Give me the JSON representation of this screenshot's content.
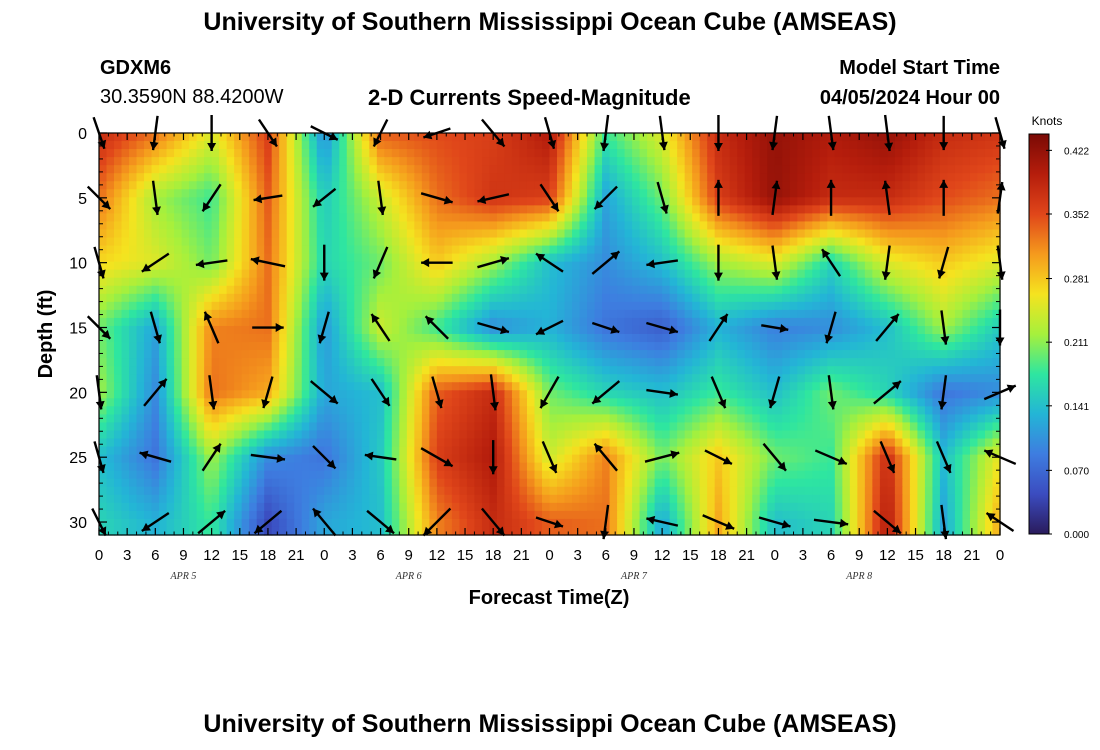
{
  "header": {
    "title": "University of Southern Mississippi Ocean Cube (AMSEAS)",
    "station_id": "GDXM6",
    "coordinates": "30.3590N  88.4200W",
    "plot_title": "2-D Currents Speed-Magnitude",
    "model_start_label": "Model Start Time",
    "model_start_value": "04/05/2024 Hour 00"
  },
  "footer": {
    "title": "University of Southern Mississippi Ocean Cube (AMSEAS)"
  },
  "chart_data": {
    "type": "heatmap",
    "title": "2-D Currents Speed-Magnitude",
    "xlabel": "Forecast Time(Z)",
    "ylabel": "Depth (ft)",
    "x_tick_labels": [
      "0",
      "3",
      "6",
      "9",
      "12",
      "15",
      "18",
      "21",
      "0",
      "3",
      "6",
      "9",
      "12",
      "15",
      "18",
      "21",
      "0",
      "3",
      "6",
      "9",
      "12",
      "15",
      "18",
      "21",
      "0",
      "3",
      "6",
      "9",
      "12",
      "15",
      "18",
      "21",
      "0"
    ],
    "x_hours": [
      0,
      3,
      6,
      9,
      12,
      15,
      18,
      21,
      24,
      27,
      30,
      33,
      36,
      39,
      42,
      45,
      48,
      51,
      54,
      57,
      60,
      63,
      66,
      69,
      72,
      75,
      78,
      81,
      84,
      87,
      90,
      93,
      96
    ],
    "day_labels": [
      {
        "text": "APR 5",
        "hour": 9
      },
      {
        "text": "APR 6",
        "hour": 33
      },
      {
        "text": "APR 7",
        "hour": 57
      },
      {
        "text": "APR 8",
        "hour": 81
      }
    ],
    "xlim": [
      0,
      96
    ],
    "y_ticks": [
      0,
      5,
      10,
      15,
      20,
      25,
      30
    ],
    "ylim": [
      0,
      31
    ],
    "y_inverted": true,
    "colorbar": {
      "label": "Knots",
      "ticks": [
        "0.422",
        "0.352",
        "0.281",
        "0.211",
        "0.141",
        "0.070",
        "0.000"
      ],
      "range": [
        0,
        0.44
      ],
      "colors": [
        "#2a1b5c",
        "#3b4cc0",
        "#3e7de0",
        "#23b5d6",
        "#2ee6a0",
        "#a6f03c",
        "#f5e31f",
        "#f59a1d",
        "#e0461a",
        "#b51d0c",
        "#7a0a05"
      ]
    },
    "depths": [
      0,
      5,
      10,
      15,
      20,
      25,
      30
    ],
    "times": [
      0,
      6,
      12,
      18,
      24,
      30,
      36,
      42,
      48,
      54,
      60,
      66,
      72,
      78,
      84,
      90,
      96
    ],
    "speed": [
      [
        0.38,
        0.33,
        0.25,
        0.36,
        0.1,
        0.34,
        0.35,
        0.36,
        0.4,
        0.18,
        0.25,
        0.38,
        0.42,
        0.4,
        0.42,
        0.38,
        0.37
      ],
      [
        0.33,
        0.22,
        0.18,
        0.34,
        0.15,
        0.24,
        0.33,
        0.37,
        0.36,
        0.12,
        0.2,
        0.36,
        0.42,
        0.38,
        0.38,
        0.35,
        0.33
      ],
      [
        0.27,
        0.25,
        0.2,
        0.33,
        0.16,
        0.2,
        0.28,
        0.22,
        0.14,
        0.1,
        0.14,
        0.22,
        0.25,
        0.16,
        0.25,
        0.28,
        0.25
      ],
      [
        0.2,
        0.12,
        0.32,
        0.33,
        0.11,
        0.24,
        0.18,
        0.1,
        0.13,
        0.08,
        0.06,
        0.13,
        0.09,
        0.1,
        0.14,
        0.22,
        0.15
      ],
      [
        0.22,
        0.1,
        0.33,
        0.3,
        0.12,
        0.14,
        0.34,
        0.38,
        0.2,
        0.16,
        0.14,
        0.18,
        0.14,
        0.2,
        0.16,
        0.08,
        0.1
      ],
      [
        0.14,
        0.08,
        0.22,
        0.1,
        0.08,
        0.15,
        0.36,
        0.4,
        0.24,
        0.32,
        0.2,
        0.28,
        0.2,
        0.18,
        0.38,
        0.14,
        0.26
      ],
      [
        0.16,
        0.13,
        0.18,
        0.04,
        0.12,
        0.14,
        0.32,
        0.38,
        0.34,
        0.33,
        0.12,
        0.3,
        0.14,
        0.16,
        0.4,
        0.12,
        0.3
      ]
    ],
    "vectors": [
      [
        [
          0.12,
          0.35
        ],
        [
          -0.05,
          0.38
        ],
        [
          0.0,
          0.4
        ],
        [
          0.2,
          0.3
        ],
        [
          0.3,
          0.15
        ],
        [
          -0.15,
          0.3
        ],
        [
          -0.3,
          0.1
        ],
        [
          0.25,
          0.3
        ],
        [
          0.1,
          0.35
        ],
        [
          -0.05,
          0.4
        ],
        [
          0.05,
          0.38
        ],
        [
          0.0,
          0.4
        ],
        [
          -0.05,
          0.38
        ],
        [
          0.05,
          0.38
        ],
        [
          0.05,
          0.4
        ],
        [
          0.0,
          0.38
        ],
        [
          0.1,
          0.35
        ]
      ],
      [
        [
          0.25,
          0.25
        ],
        [
          0.05,
          0.38
        ],
        [
          -0.2,
          0.3
        ],
        [
          -0.32,
          0.05
        ],
        [
          -0.25,
          0.2
        ],
        [
          0.05,
          0.38
        ],
        [
          0.35,
          0.1
        ],
        [
          -0.35,
          0.08
        ],
        [
          0.2,
          0.3
        ],
        [
          -0.25,
          0.25
        ],
        [
          0.1,
          0.35
        ],
        [
          0.0,
          -0.4
        ],
        [
          0.05,
          -0.38
        ],
        [
          0.0,
          -0.4
        ],
        [
          -0.05,
          -0.38
        ],
        [
          0.0,
          -0.4
        ],
        [
          0.05,
          -0.35
        ]
      ],
      [
        [
          0.1,
          0.35
        ],
        [
          -0.3,
          0.2
        ],
        [
          -0.35,
          0.05
        ],
        [
          -0.38,
          -0.08
        ],
        [
          0.0,
          0.4
        ],
        [
          -0.15,
          0.35
        ],
        [
          -0.35,
          0.0
        ],
        [
          0.35,
          -0.1
        ],
        [
          -0.3,
          -0.2
        ],
        [
          0.3,
          -0.25
        ],
        [
          -0.35,
          0.05
        ],
        [
          0.0,
          0.4
        ],
        [
          0.05,
          0.38
        ],
        [
          -0.2,
          -0.3
        ],
        [
          -0.05,
          0.38
        ],
        [
          -0.1,
          0.35
        ],
        [
          0.05,
          0.38
        ]
      ],
      [
        [
          0.25,
          0.25
        ],
        [
          0.1,
          0.35
        ],
        [
          -0.15,
          -0.35
        ],
        [
          0.35,
          0.0
        ],
        [
          -0.1,
          0.35
        ],
        [
          -0.2,
          -0.3
        ],
        [
          -0.25,
          -0.25
        ],
        [
          0.35,
          0.1
        ],
        [
          -0.3,
          0.15
        ],
        [
          0.3,
          0.1
        ],
        [
          0.35,
          0.1
        ],
        [
          0.2,
          -0.3
        ],
        [
          0.3,
          0.05
        ],
        [
          -0.1,
          0.35
        ],
        [
          0.25,
          -0.3
        ],
        [
          0.05,
          0.38
        ],
        [
          0.0,
          0.4
        ]
      ],
      [
        [
          0.05,
          0.38
        ],
        [
          0.25,
          -0.3
        ],
        [
          0.05,
          0.38
        ],
        [
          -0.1,
          0.35
        ],
        [
          0.3,
          0.25
        ],
        [
          0.2,
          0.3
        ],
        [
          0.1,
          0.35
        ],
        [
          0.05,
          0.4
        ],
        [
          -0.2,
          0.35
        ],
        [
          -0.3,
          0.25
        ],
        [
          0.35,
          0.05
        ],
        [
          0.15,
          0.35
        ],
        [
          -0.1,
          0.35
        ],
        [
          0.05,
          0.38
        ],
        [
          0.3,
          -0.25
        ],
        [
          -0.05,
          0.38
        ],
        [
          0.35,
          -0.15
        ]
      ],
      [
        [
          0.1,
          0.35
        ],
        [
          -0.35,
          -0.1
        ],
        [
          0.2,
          -0.3
        ],
        [
          0.38,
          0.05
        ],
        [
          0.25,
          0.25
        ],
        [
          -0.35,
          -0.05
        ],
        [
          0.35,
          0.2
        ],
        [
          0.0,
          0.38
        ],
        [
          0.15,
          0.35
        ],
        [
          -0.25,
          -0.3
        ],
        [
          0.38,
          -0.1
        ],
        [
          0.3,
          0.15
        ],
        [
          0.25,
          0.3
        ],
        [
          0.35,
          0.15
        ],
        [
          0.15,
          0.35
        ],
        [
          0.15,
          0.35
        ],
        [
          -0.35,
          -0.15
        ]
      ],
      [
        [
          0.15,
          0.3
        ],
        [
          -0.3,
          0.2
        ],
        [
          0.3,
          -0.25
        ],
        [
          -0.3,
          0.25
        ],
        [
          -0.25,
          -0.3
        ],
        [
          0.3,
          0.25
        ],
        [
          -0.3,
          0.3
        ],
        [
          0.25,
          0.3
        ],
        [
          0.3,
          0.1
        ],
        [
          -0.05,
          0.38
        ],
        [
          -0.35,
          -0.08
        ],
        [
          0.35,
          0.15
        ],
        [
          0.35,
          0.1
        ],
        [
          0.38,
          0.05
        ],
        [
          0.3,
          0.25
        ],
        [
          0.05,
          0.38
        ],
        [
          -0.3,
          -0.2
        ]
      ]
    ]
  }
}
